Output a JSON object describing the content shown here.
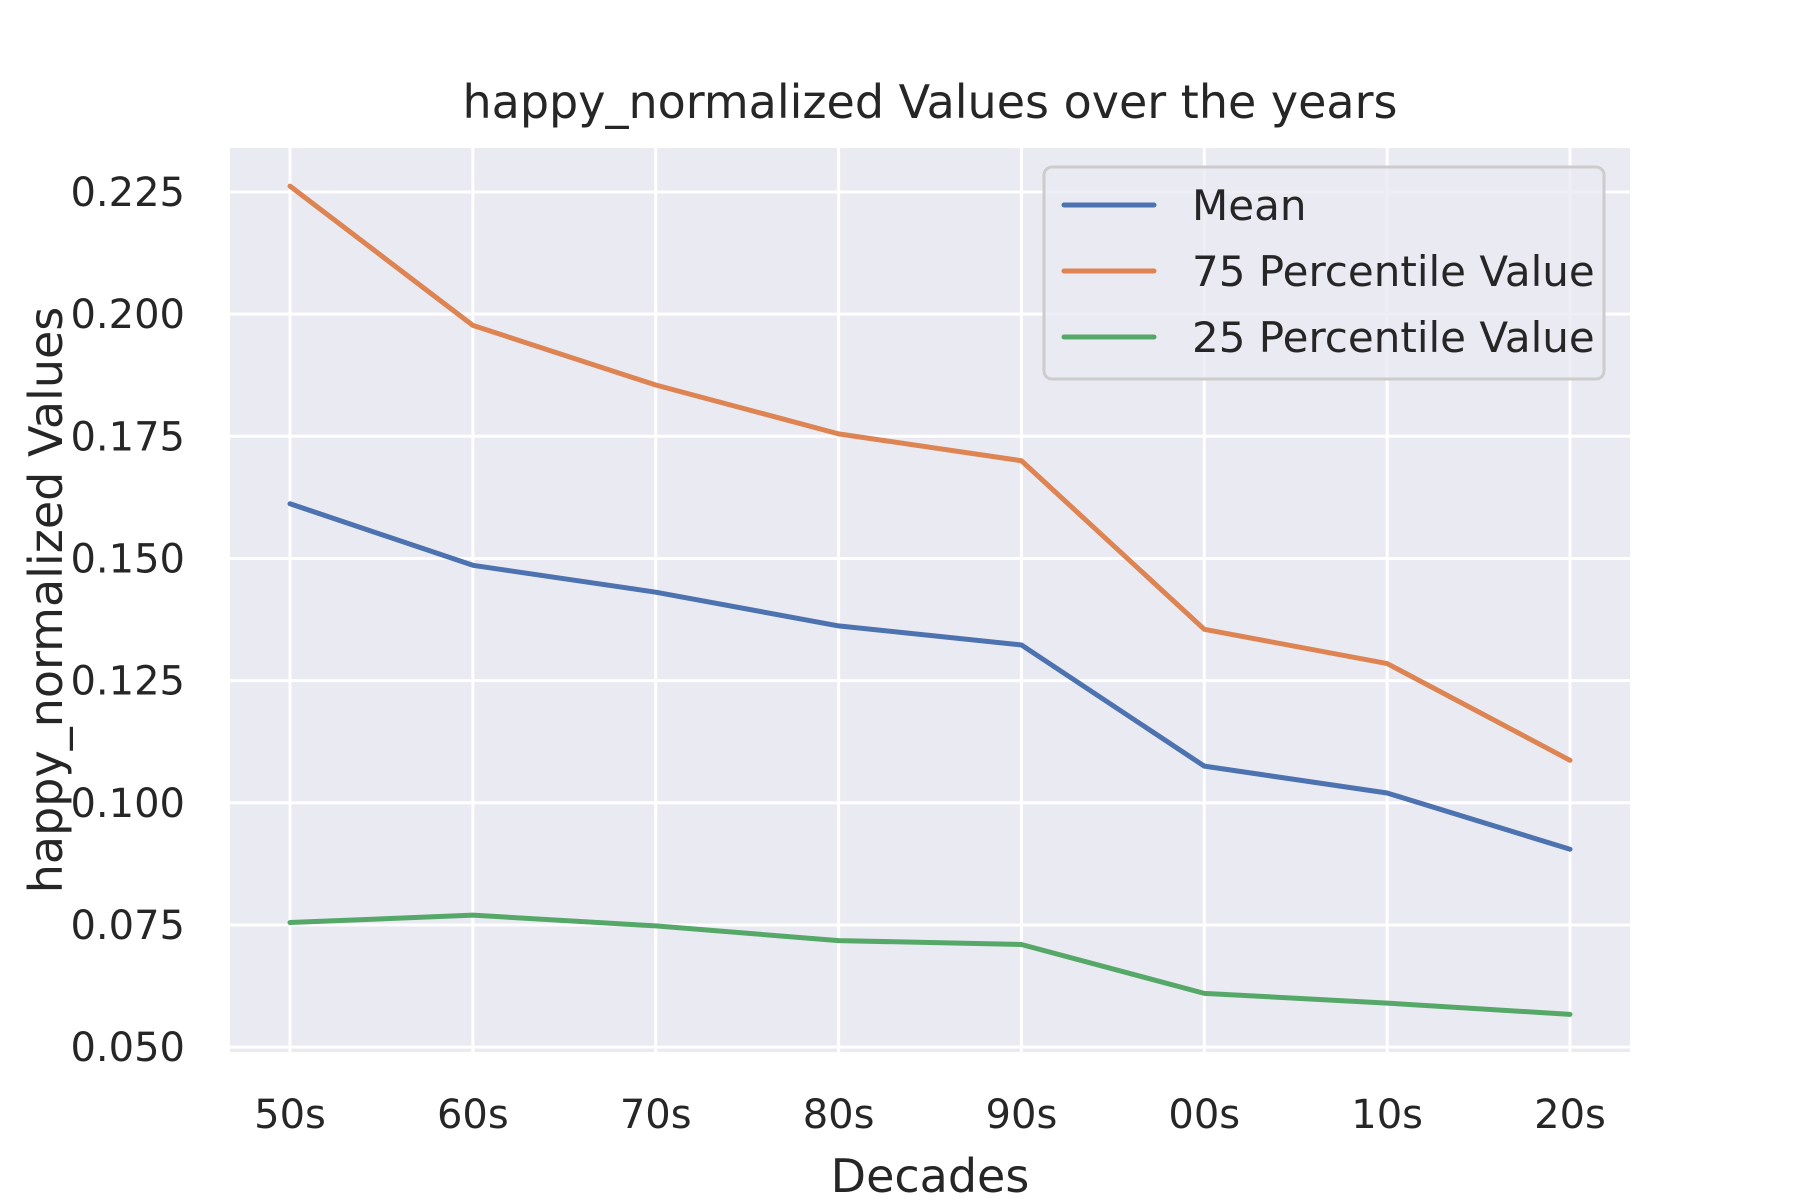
{
  "chart_data": {
    "type": "line",
    "title": "happy_normalized Values over the years",
    "xlabel": "Decades",
    "ylabel": "happy_normalized Values",
    "categories": [
      "50s",
      "60s",
      "70s",
      "80s",
      "90s",
      "00s",
      "10s",
      "20s"
    ],
    "series": [
      {
        "name": "Mean",
        "color": "#4c72b0",
        "values": [
          0.1612,
          0.1486,
          0.1431,
          0.1362,
          0.1323,
          0.1075,
          0.102,
          0.0905
        ]
      },
      {
        "name": "75 Percentile Value",
        "color": "#dd8452",
        "values": [
          0.2262,
          0.1977,
          0.1855,
          0.1755,
          0.17,
          0.1355,
          0.1285,
          0.1087
        ]
      },
      {
        "name": "25 Percentile Value",
        "color": "#55a868",
        "values": [
          0.0755,
          0.077,
          0.0748,
          0.0718,
          0.071,
          0.061,
          0.059,
          0.0567
        ]
      }
    ],
    "ylim": [
      0.049,
      0.234
    ],
    "yticks": [
      "0.050",
      "0.075",
      "0.100",
      "0.125",
      "0.150",
      "0.175",
      "0.200",
      "0.225"
    ],
    "grid": true,
    "legend_position": "top-right",
    "background_color": "#eaeaf2",
    "grid_color": "#ffffff"
  }
}
